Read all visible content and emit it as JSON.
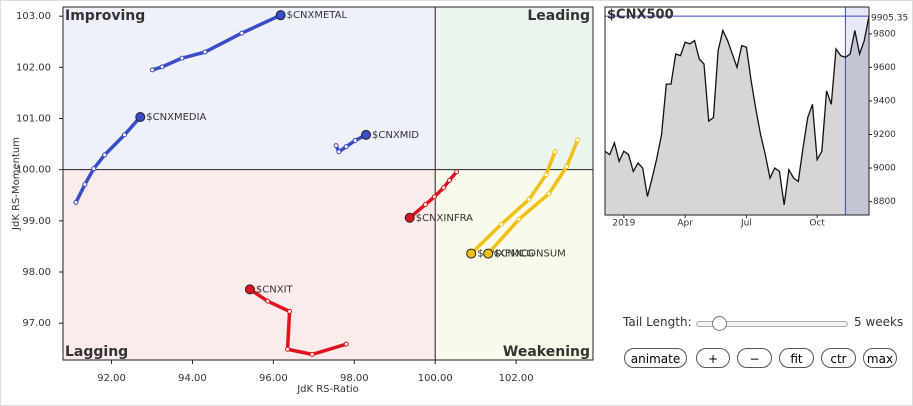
{
  "chart_data": [
    {
      "type": "rrg",
      "xlabel": "JdK RS-Ratio",
      "ylabel": "JdK RS-Momentum",
      "xlim": [
        90.8,
        103.9
      ],
      "ylim": [
        96.28,
        103.18
      ],
      "center": 100,
      "xticks": [
        {
          "value": 92,
          "label": "92.00"
        },
        {
          "value": 94,
          "label": "94.00"
        },
        {
          "value": 96,
          "label": "96.00"
        },
        {
          "value": 98,
          "label": "98.00"
        },
        {
          "value": 100,
          "label": "100.00"
        },
        {
          "value": 102,
          "label": "102.00"
        }
      ],
      "yticks": [
        {
          "value": 97,
          "label": "97.00"
        },
        {
          "value": 98,
          "label": "98.00"
        },
        {
          "value": 99,
          "label": "99.00"
        },
        {
          "value": 100,
          "label": "100.00"
        },
        {
          "value": 101,
          "label": "101.00"
        },
        {
          "value": 102,
          "label": "102.00"
        },
        {
          "value": 103,
          "label": "103.00"
        }
      ],
      "quadrants": [
        {
          "label": "Improving",
          "corner": "top-left",
          "background": "#eef0fa",
          "color": "#8d97e0"
        },
        {
          "label": "Leading",
          "corner": "top-right",
          "background": "#ecf5ed",
          "color": "#7cbf7c"
        },
        {
          "label": "Lagging",
          "corner": "bottom-left",
          "background": "#fbebeb",
          "color": "#ef8c8c"
        },
        {
          "label": "Weakening",
          "corner": "bottom-right",
          "background": "#fafaea",
          "color": "#e6be1e"
        }
      ],
      "series": [
        {
          "name": "$CNXMETAL",
          "color": "#3a4cc8",
          "x": [
            93.01,
            93.25,
            93.74,
            94.31,
            95.22,
            96.18
          ],
          "values": [
            101.95,
            102.01,
            102.18,
            102.3,
            102.67,
            103.02
          ]
        },
        {
          "name": "$CNXMEDIA",
          "color": "#3a4cc8",
          "x": [
            91.12,
            91.34,
            91.56,
            91.83,
            92.32,
            92.71
          ],
          "values": [
            99.36,
            99.71,
            100.02,
            100.29,
            100.68,
            101.03
          ]
        },
        {
          "name": "$CNXMID",
          "color": "#3a4cc8",
          "x": [
            97.55,
            97.62,
            97.8,
            98.02,
            98.29
          ],
          "values": [
            100.47,
            100.35,
            100.45,
            100.57,
            100.68
          ]
        },
        {
          "name": "$CNXINFRA",
          "color": "#e01420",
          "x": [
            100.53,
            100.35,
            100.21,
            99.98,
            99.76,
            99.37
          ],
          "values": [
            99.96,
            99.79,
            99.65,
            99.47,
            99.32,
            99.06
          ]
        },
        {
          "name": "$CNXIT",
          "color": "#e01420",
          "x": [
            97.8,
            96.96,
            96.35,
            96.4,
            95.86,
            95.42
          ],
          "values": [
            96.59,
            96.39,
            96.49,
            97.23,
            97.43,
            97.66
          ]
        },
        {
          "name": "$CNXFMCG",
          "color": "#f0c014",
          "x": [
            102.96,
            102.74,
            102.32,
            101.63,
            100.89
          ],
          "values": [
            100.35,
            99.9,
            99.42,
            98.93,
            98.36
          ]
        },
        {
          "name": "$CNXCONSUM",
          "color": "#f0c014",
          "x": [
            103.52,
            103.25,
            102.81,
            102.07,
            101.31
          ],
          "values": [
            100.58,
            100.06,
            99.53,
            99.03,
            98.36
          ]
        }
      ]
    },
    {
      "type": "line",
      "title": "$CNX500",
      "color": "#111111",
      "fill": "#d6d6d6",
      "highlight": "#3a4cc8",
      "tail_length": 5,
      "xlim": [
        0,
        56
      ],
      "ylim": [
        8720,
        9960
      ],
      "xticks": [
        {
          "value": 4,
          "label": "2019"
        },
        {
          "value": 17,
          "label": "Apr"
        },
        {
          "value": 30,
          "label": "Jul"
        },
        {
          "value": 45,
          "label": "Oct"
        }
      ],
      "yticks": [
        8800,
        9000,
        9200,
        9400,
        9600,
        9800
      ],
      "values": [
        9100,
        9080,
        9150,
        9040,
        9100,
        9080,
        8980,
        9030,
        9000,
        8830,
        8940,
        9060,
        9200,
        9500,
        9500,
        9680,
        9670,
        9750,
        9740,
        9760,
        9650,
        9620,
        9280,
        9300,
        9700,
        9820,
        9760,
        9680,
        9600,
        9730,
        9720,
        9520,
        9350,
        9200,
        9080,
        8940,
        9000,
        8980,
        8780,
        8990,
        8940,
        8920,
        9120,
        9300,
        9380,
        9050,
        9100,
        9460,
        9380,
        9710,
        9670,
        9660,
        9680,
        9820,
        9680,
        9760,
        9905.35
      ]
    }
  ],
  "controls": {
    "tail_label": "Tail Length:",
    "tail_value": "5 weeks",
    "buttons": [
      "animate",
      "+",
      "−",
      "fit",
      "ctr",
      "max"
    ]
  }
}
